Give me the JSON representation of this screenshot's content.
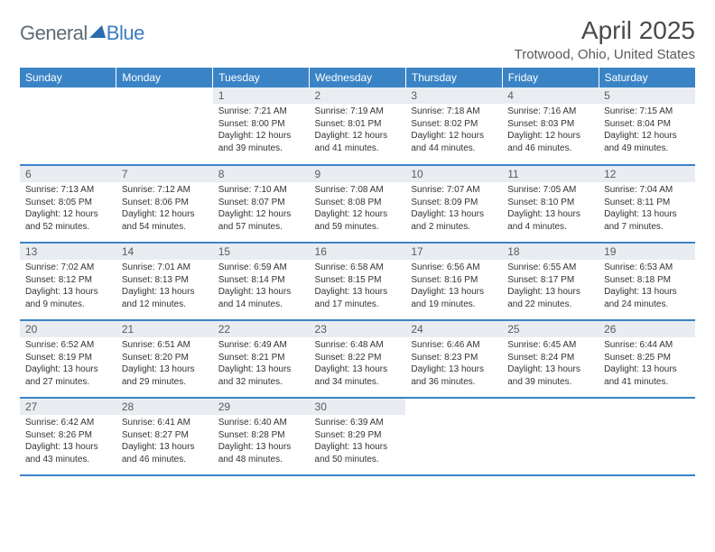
{
  "logo": {
    "general": "General",
    "blue": "Blue"
  },
  "title": "April 2025",
  "location": "Trotwood, Ohio, United States",
  "header_bg": "#3a84c6",
  "daynum_bg": "#e9edf1",
  "dayHeaders": [
    "Sunday",
    "Monday",
    "Tuesday",
    "Wednesday",
    "Thursday",
    "Friday",
    "Saturday"
  ],
  "weeks": [
    [
      {
        "empty": true
      },
      {
        "empty": true
      },
      {
        "num": "1",
        "sunrise": "7:21 AM",
        "sunset": "8:00 PM",
        "daylight": "12 hours and 39 minutes."
      },
      {
        "num": "2",
        "sunrise": "7:19 AM",
        "sunset": "8:01 PM",
        "daylight": "12 hours and 41 minutes."
      },
      {
        "num": "3",
        "sunrise": "7:18 AM",
        "sunset": "8:02 PM",
        "daylight": "12 hours and 44 minutes."
      },
      {
        "num": "4",
        "sunrise": "7:16 AM",
        "sunset": "8:03 PM",
        "daylight": "12 hours and 46 minutes."
      },
      {
        "num": "5",
        "sunrise": "7:15 AM",
        "sunset": "8:04 PM",
        "daylight": "12 hours and 49 minutes."
      }
    ],
    [
      {
        "num": "6",
        "sunrise": "7:13 AM",
        "sunset": "8:05 PM",
        "daylight": "12 hours and 52 minutes."
      },
      {
        "num": "7",
        "sunrise": "7:12 AM",
        "sunset": "8:06 PM",
        "daylight": "12 hours and 54 minutes."
      },
      {
        "num": "8",
        "sunrise": "7:10 AM",
        "sunset": "8:07 PM",
        "daylight": "12 hours and 57 minutes."
      },
      {
        "num": "9",
        "sunrise": "7:08 AM",
        "sunset": "8:08 PM",
        "daylight": "12 hours and 59 minutes."
      },
      {
        "num": "10",
        "sunrise": "7:07 AM",
        "sunset": "8:09 PM",
        "daylight": "13 hours and 2 minutes."
      },
      {
        "num": "11",
        "sunrise": "7:05 AM",
        "sunset": "8:10 PM",
        "daylight": "13 hours and 4 minutes."
      },
      {
        "num": "12",
        "sunrise": "7:04 AM",
        "sunset": "8:11 PM",
        "daylight": "13 hours and 7 minutes."
      }
    ],
    [
      {
        "num": "13",
        "sunrise": "7:02 AM",
        "sunset": "8:12 PM",
        "daylight": "13 hours and 9 minutes."
      },
      {
        "num": "14",
        "sunrise": "7:01 AM",
        "sunset": "8:13 PM",
        "daylight": "13 hours and 12 minutes."
      },
      {
        "num": "15",
        "sunrise": "6:59 AM",
        "sunset": "8:14 PM",
        "daylight": "13 hours and 14 minutes."
      },
      {
        "num": "16",
        "sunrise": "6:58 AM",
        "sunset": "8:15 PM",
        "daylight": "13 hours and 17 minutes."
      },
      {
        "num": "17",
        "sunrise": "6:56 AM",
        "sunset": "8:16 PM",
        "daylight": "13 hours and 19 minutes."
      },
      {
        "num": "18",
        "sunrise": "6:55 AM",
        "sunset": "8:17 PM",
        "daylight": "13 hours and 22 minutes."
      },
      {
        "num": "19",
        "sunrise": "6:53 AM",
        "sunset": "8:18 PM",
        "daylight": "13 hours and 24 minutes."
      }
    ],
    [
      {
        "num": "20",
        "sunrise": "6:52 AM",
        "sunset": "8:19 PM",
        "daylight": "13 hours and 27 minutes."
      },
      {
        "num": "21",
        "sunrise": "6:51 AM",
        "sunset": "8:20 PM",
        "daylight": "13 hours and 29 minutes."
      },
      {
        "num": "22",
        "sunrise": "6:49 AM",
        "sunset": "8:21 PM",
        "daylight": "13 hours and 32 minutes."
      },
      {
        "num": "23",
        "sunrise": "6:48 AM",
        "sunset": "8:22 PM",
        "daylight": "13 hours and 34 minutes."
      },
      {
        "num": "24",
        "sunrise": "6:46 AM",
        "sunset": "8:23 PM",
        "daylight": "13 hours and 36 minutes."
      },
      {
        "num": "25",
        "sunrise": "6:45 AM",
        "sunset": "8:24 PM",
        "daylight": "13 hours and 39 minutes."
      },
      {
        "num": "26",
        "sunrise": "6:44 AM",
        "sunset": "8:25 PM",
        "daylight": "13 hours and 41 minutes."
      }
    ],
    [
      {
        "num": "27",
        "sunrise": "6:42 AM",
        "sunset": "8:26 PM",
        "daylight": "13 hours and 43 minutes."
      },
      {
        "num": "28",
        "sunrise": "6:41 AM",
        "sunset": "8:27 PM",
        "daylight": "13 hours and 46 minutes."
      },
      {
        "num": "29",
        "sunrise": "6:40 AM",
        "sunset": "8:28 PM",
        "daylight": "13 hours and 48 minutes."
      },
      {
        "num": "30",
        "sunrise": "6:39 AM",
        "sunset": "8:29 PM",
        "daylight": "13 hours and 50 minutes."
      },
      {
        "empty": true
      },
      {
        "empty": true
      },
      {
        "empty": true
      }
    ]
  ],
  "labels": {
    "sunrise": "Sunrise: ",
    "sunset": "Sunset: ",
    "daylight": "Daylight: "
  }
}
